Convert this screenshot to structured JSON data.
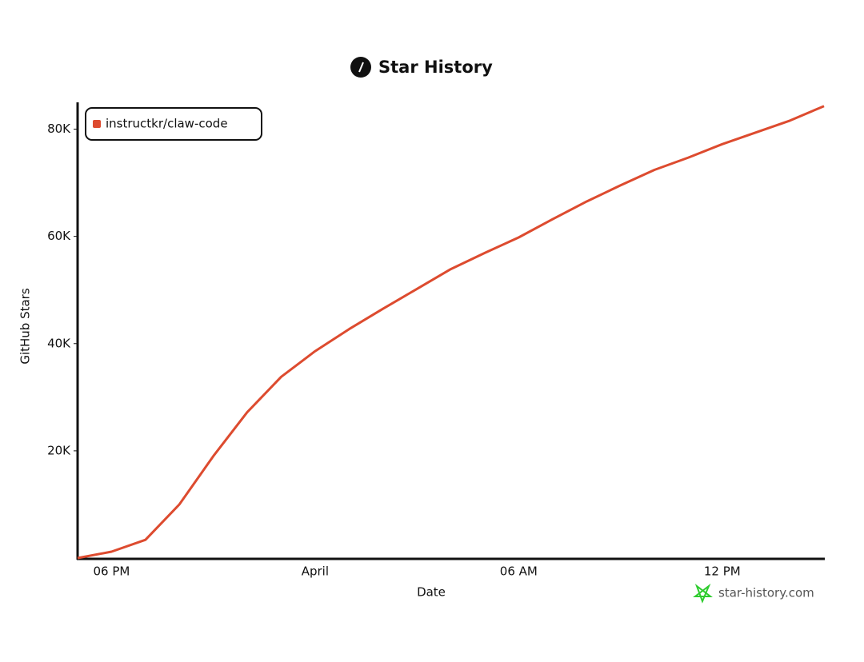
{
  "chart_data": {
    "type": "line",
    "title": "Star History",
    "x_label": "Date",
    "y_label": "GitHub Stars",
    "categories": [
      null,
      "06 PM",
      null,
      null,
      null,
      null,
      null,
      "April",
      null,
      null,
      null,
      null,
      null,
      "06 AM",
      null,
      null,
      null,
      null,
      null,
      "12 PM",
      null,
      null,
      null
    ],
    "series": [
      {
        "name": "instructkr/claw-code",
        "color": "#dd4b2f",
        "values": [
          0,
          1200,
          3400,
          10000,
          19000,
          27200,
          33800,
          38600,
          42700,
          46500,
          50200,
          53900,
          56900,
          59800,
          63200,
          66500,
          69500,
          72400,
          74700,
          77200,
          79400,
          81600,
          84300
        ]
      }
    ],
    "ylim": [
      0,
      85000
    ],
    "yticks": [
      {
        "value": 20000,
        "label": "20K"
      },
      {
        "value": 40000,
        "label": "40K"
      },
      {
        "value": 60000,
        "label": "60K"
      },
      {
        "value": 80000,
        "label": "80K"
      }
    ],
    "legend": "upper-left",
    "watermark": "star-history.com"
  }
}
